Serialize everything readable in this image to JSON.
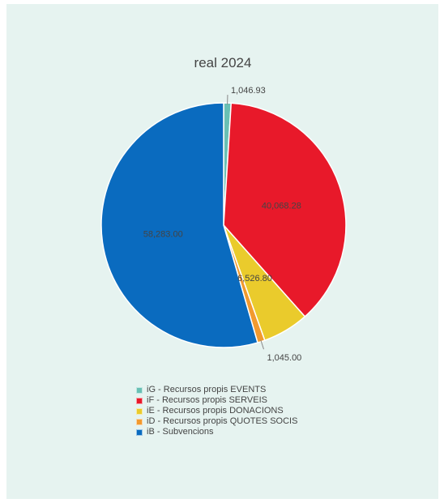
{
  "chart_data": {
    "type": "pie",
    "title": "real 2024",
    "slices": [
      {
        "label": "iG - Recursos propis EVENTS",
        "value": 1046.93,
        "value_label": "1,046.93",
        "color": "#69c0b4"
      },
      {
        "label": "iF - Recursos propis SERVEIS",
        "value": 40068.28,
        "value_label": "40,068.28",
        "color": "#e8192a"
      },
      {
        "label": "iE - Recursos propis DONACIONS",
        "value": 6526.8,
        "value_label": "6,526.80",
        "color": "#eacb2c"
      },
      {
        "label": "iD - Recursos propis QUOTES SOCIS",
        "value": 1045.0,
        "value_label": "1,045.00",
        "color": "#f29a2e"
      },
      {
        "label": "iB - Subvencions",
        "value": 58283.0,
        "value_label": "58,283.00",
        "color": "#0a6bbf"
      }
    ],
    "legend_position": "bottom"
  }
}
